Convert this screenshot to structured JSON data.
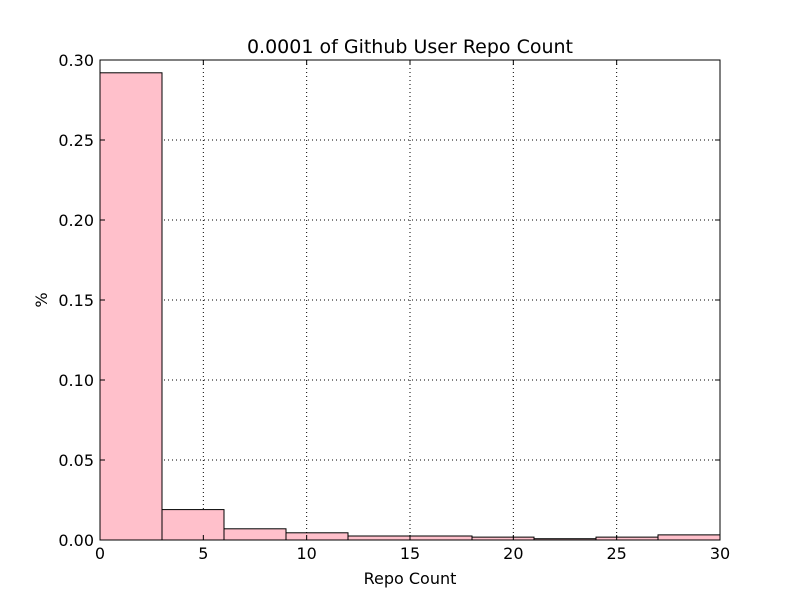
{
  "chart_data": {
    "type": "bar",
    "title": "0.0001 of Github User Repo Count",
    "xlabel": "Repo Count",
    "ylabel": "%",
    "xlim": [
      0,
      30
    ],
    "ylim": [
      0,
      0.3
    ],
    "grid": true,
    "bar_color": "#ffc0cb",
    "edge_color": "#000000",
    "bins": [
      {
        "x0": 0,
        "x1": 3,
        "value": 0.292
      },
      {
        "x0": 3,
        "x1": 6,
        "value": 0.019
      },
      {
        "x0": 6,
        "x1": 9,
        "value": 0.007
      },
      {
        "x0": 9,
        "x1": 12,
        "value": 0.0045
      },
      {
        "x0": 12,
        "x1": 15,
        "value": 0.0025
      },
      {
        "x0": 15,
        "x1": 18,
        "value": 0.0025
      },
      {
        "x0": 18,
        "x1": 21,
        "value": 0.0018
      },
      {
        "x0": 21,
        "x1": 24,
        "value": 0.0008
      },
      {
        "x0": 24,
        "x1": 27,
        "value": 0.0018
      },
      {
        "x0": 27,
        "x1": 30,
        "value": 0.0032
      }
    ],
    "x_ticks": [
      {
        "value": 0,
        "label": "0"
      },
      {
        "value": 5,
        "label": "5"
      },
      {
        "value": 10,
        "label": "10"
      },
      {
        "value": 15,
        "label": "15"
      },
      {
        "value": 20,
        "label": "20"
      },
      {
        "value": 25,
        "label": "25"
      },
      {
        "value": 30,
        "label": "30"
      }
    ],
    "y_ticks": [
      {
        "value": 0.0,
        "label": "0.00"
      },
      {
        "value": 0.05,
        "label": "0.05"
      },
      {
        "value": 0.1,
        "label": "0.10"
      },
      {
        "value": 0.15,
        "label": "0.15"
      },
      {
        "value": 0.2,
        "label": "0.20"
      },
      {
        "value": 0.25,
        "label": "0.25"
      },
      {
        "value": 0.3,
        "label": "0.30"
      }
    ]
  }
}
